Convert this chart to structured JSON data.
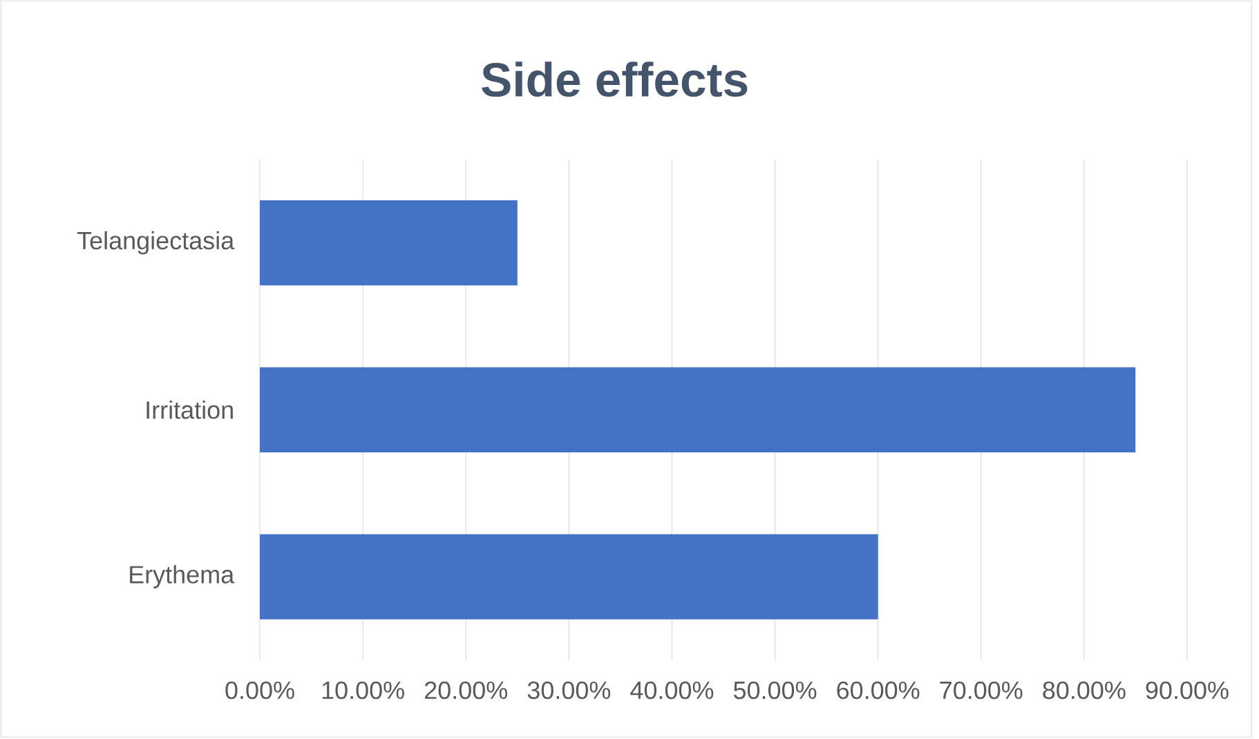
{
  "chart_data": {
    "type": "bar",
    "orientation": "horizontal",
    "title": "Side effects",
    "categories": [
      "Telangiectasia",
      "Irritation",
      "Erythema"
    ],
    "values": [
      25,
      85,
      60
    ],
    "color": "#4472c4",
    "xlim": [
      0,
      90
    ],
    "xticks": [
      {
        "value": 0,
        "label": "0.00%"
      },
      {
        "value": 10,
        "label": "10.00%"
      },
      {
        "value": 20,
        "label": "20.00%"
      },
      {
        "value": 30,
        "label": "30.00%"
      },
      {
        "value": 40,
        "label": "40.00%"
      },
      {
        "value": 50,
        "label": "50.00%"
      },
      {
        "value": 60,
        "label": "60.00%"
      },
      {
        "value": 70,
        "label": "70.00%"
      },
      {
        "value": 80,
        "label": "80.00%"
      },
      {
        "value": 90,
        "label": "90.00%"
      }
    ],
    "grid": "x"
  }
}
